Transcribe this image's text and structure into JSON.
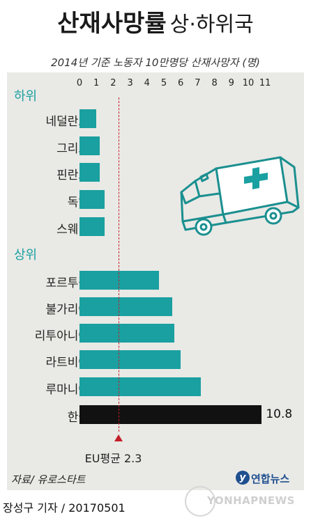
{
  "title": {
    "main": "산재사망률",
    "sub": "상·하위국"
  },
  "subtitle": "2014년 기준  노동자 10만명당 산재사망자 (명)",
  "groups": {
    "lower": "하위",
    "upper": "상위"
  },
  "colors": {
    "bar": "#1aa0a0",
    "highlight": "#111111",
    "reference": "#c21f2a",
    "panel": "#e9e9e6"
  },
  "icons": {
    "illustration": "ambulance-icon"
  },
  "chart_data": {
    "type": "bar",
    "orientation": "horizontal",
    "title": "산재사망률 상·하위국",
    "subtitle": "2014년 기준  노동자 10만명당 산재사망자 (명)",
    "xlim": [
      0,
      11
    ],
    "ticks": [
      "0",
      "1",
      "2",
      "3",
      "4",
      "5",
      "6",
      "7",
      "8",
      "9",
      "10",
      "11"
    ],
    "categories": [
      "네덜란드",
      "그리스",
      "핀란드",
      "독일",
      "스웨덴",
      "포르투갈",
      "불가리아",
      "리투아니아",
      "라트비아",
      "루마니아",
      "한국"
    ],
    "values": [
      1.0,
      1.2,
      1.2,
      1.5,
      1.5,
      4.7,
      5.5,
      5.6,
      6.0,
      7.2,
      10.8
    ],
    "groups": [
      {
        "name": "하위",
        "categories": [
          "네덜란드",
          "그리스",
          "핀란드",
          "독일",
          "스웨덴"
        ]
      },
      {
        "name": "상위",
        "categories": [
          "포르투갈",
          "불가리아",
          "리투아니아",
          "라트비아",
          "루마니아",
          "한국"
        ]
      }
    ],
    "highlight": {
      "category": "한국",
      "label": "10.8"
    },
    "reference_line": {
      "value": 2.3,
      "label": "EU평균 2.3"
    },
    "grid": false,
    "legend": "none"
  },
  "footer": {
    "source": "자료/ 유로스타트",
    "credit": "장성구 기자 / 20170501",
    "brand": "연합뉴스",
    "brand_logo": "y",
    "watermark": "YONHAPNEWS"
  }
}
